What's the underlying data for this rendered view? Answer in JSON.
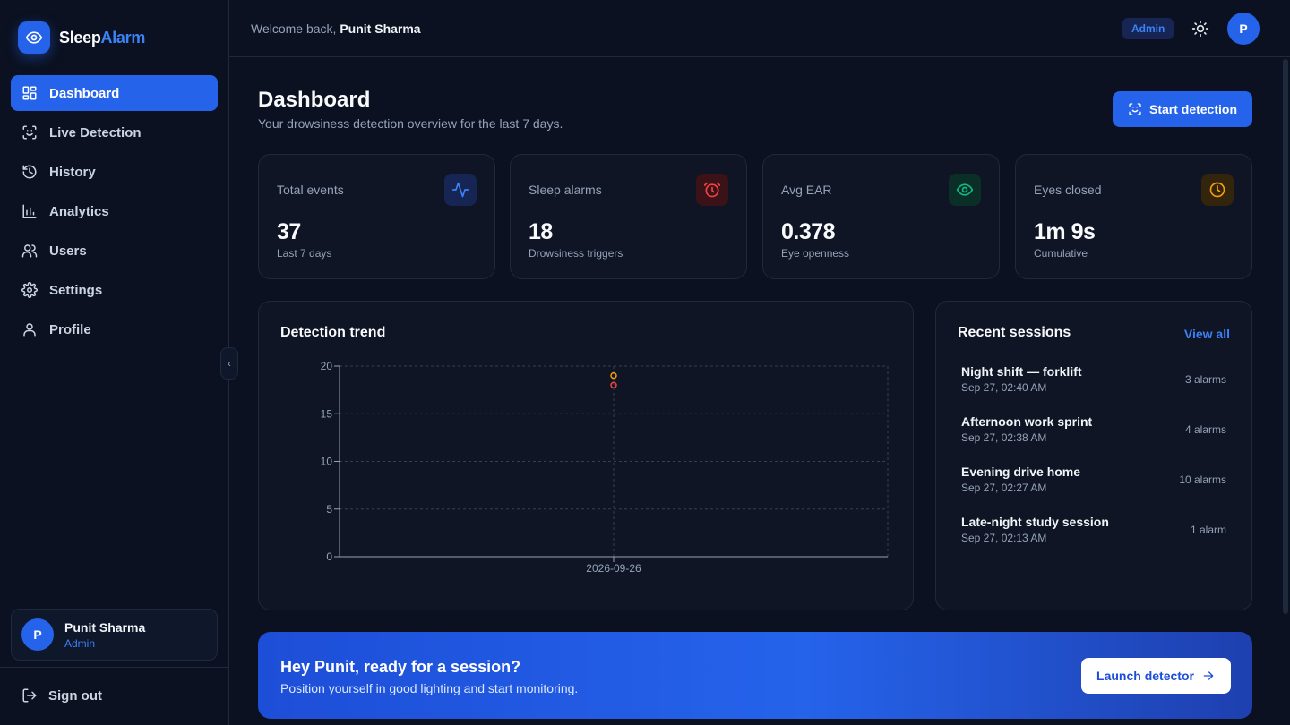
{
  "brand": {
    "name_main": "Sleep",
    "name_accent": "Alarm"
  },
  "sidebar": {
    "items": [
      {
        "label": "Dashboard",
        "icon": "dashboard-icon",
        "active": true
      },
      {
        "label": "Live Detection",
        "icon": "scan-icon"
      },
      {
        "label": "History",
        "icon": "history-icon"
      },
      {
        "label": "Analytics",
        "icon": "bar-chart-icon"
      },
      {
        "label": "Users",
        "icon": "users-icon"
      },
      {
        "label": "Settings",
        "icon": "gear-icon"
      },
      {
        "label": "Profile",
        "icon": "user-icon"
      }
    ],
    "user": {
      "initial": "P",
      "name": "Punit Sharma",
      "role": "Admin"
    },
    "signout": "Sign out"
  },
  "topbar": {
    "welcome_prefix": "Welcome back,",
    "welcome_name": "Punit Sharma",
    "role_badge": "Admin",
    "avatar_initial": "P"
  },
  "main": {
    "title": "Dashboard",
    "subtitle": "Your drowsiness detection overview for the last 7 days.",
    "start_button": "Start detection"
  },
  "stats": [
    {
      "label": "Total events",
      "value": "37",
      "note": "Last 7 days",
      "icon": "activity-icon",
      "color": "#3b82f6"
    },
    {
      "label": "Sleep alarms",
      "value": "18",
      "note": "Drowsiness triggers",
      "icon": "alarm-clock-icon",
      "color": "#ef4444"
    },
    {
      "label": "Avg EAR",
      "value": "0.378",
      "note": "Eye openness",
      "icon": "eye-icon",
      "color": "#10b981"
    },
    {
      "label": "Eyes closed",
      "value": "1m 9s",
      "note": "Cumulative",
      "icon": "clock-icon",
      "color": "#f59e0b"
    }
  ],
  "trend": {
    "title": "Detection trend"
  },
  "chart_data": {
    "type": "scatter",
    "x": [
      "2026-09-26"
    ],
    "series": [
      {
        "values": [
          19
        ],
        "color": "#f59e0b"
      },
      {
        "values": [
          18
        ],
        "color": "#ef4444"
      }
    ],
    "ylim": [
      0,
      20
    ],
    "yticks": [
      "0",
      "5",
      "10",
      "15",
      "20"
    ],
    "grid": true
  },
  "recent": {
    "title": "Recent sessions",
    "view_all": "View all",
    "sessions": [
      {
        "name": "Night shift — forklift",
        "time": "Sep 27, 02:40 AM",
        "alarms": "3 alarms"
      },
      {
        "name": "Afternoon work sprint",
        "time": "Sep 27, 02:38 AM",
        "alarms": "4 alarms"
      },
      {
        "name": "Evening drive home",
        "time": "Sep 27, 02:27 AM",
        "alarms": "10 alarms"
      },
      {
        "name": "Late-night study session",
        "time": "Sep 27, 02:13 AM",
        "alarms": "1 alarm"
      }
    ]
  },
  "banner": {
    "title": "Hey Punit, ready for a session?",
    "subtitle": "Position yourself in good lighting and start monitoring.",
    "button": "Launch detector"
  }
}
